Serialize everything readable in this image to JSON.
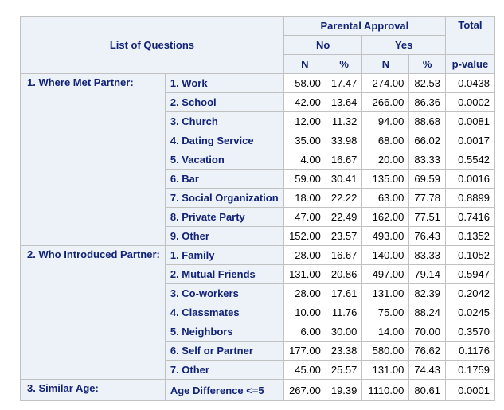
{
  "header": {
    "list_of_questions": "List of Questions",
    "parental_approval": "Parental Approval",
    "total": "Total",
    "no": "No",
    "yes": "Yes",
    "n": "N",
    "pct": "%",
    "p_value": "p-value"
  },
  "groups": [
    {
      "label": "1. Where Met Partner:",
      "rows": [
        {
          "item": "1. Work",
          "no_n": "58.00",
          "no_pct": "17.47",
          "yes_n": "274.00",
          "yes_pct": "82.53",
          "p": "0.0438"
        },
        {
          "item": "2. School",
          "no_n": "42.00",
          "no_pct": "13.64",
          "yes_n": "266.00",
          "yes_pct": "86.36",
          "p": "0.0002"
        },
        {
          "item": "3. Church",
          "no_n": "12.00",
          "no_pct": "11.32",
          "yes_n": "94.00",
          "yes_pct": "88.68",
          "p": "0.0081"
        },
        {
          "item": "4. Dating Service",
          "no_n": "35.00",
          "no_pct": "33.98",
          "yes_n": "68.00",
          "yes_pct": "66.02",
          "p": "0.0017"
        },
        {
          "item": "5. Vacation",
          "no_n": "4.00",
          "no_pct": "16.67",
          "yes_n": "20.00",
          "yes_pct": "83.33",
          "p": "0.5542"
        },
        {
          "item": "6. Bar",
          "no_n": "59.00",
          "no_pct": "30.41",
          "yes_n": "135.00",
          "yes_pct": "69.59",
          "p": "0.0016"
        },
        {
          "item": "7. Social Organization",
          "no_n": "18.00",
          "no_pct": "22.22",
          "yes_n": "63.00",
          "yes_pct": "77.78",
          "p": "0.8899"
        },
        {
          "item": "8. Private Party",
          "no_n": "47.00",
          "no_pct": "22.49",
          "yes_n": "162.00",
          "yes_pct": "77.51",
          "p": "0.7416"
        },
        {
          "item": "9. Other",
          "no_n": "152.00",
          "no_pct": "23.57",
          "yes_n": "493.00",
          "yes_pct": "76.43",
          "p": "0.1352"
        }
      ]
    },
    {
      "label": "2. Who Introduced Partner:",
      "rows": [
        {
          "item": "1. Family",
          "no_n": "28.00",
          "no_pct": "16.67",
          "yes_n": "140.00",
          "yes_pct": "83.33",
          "p": "0.1052"
        },
        {
          "item": "2. Mutual Friends",
          "no_n": "131.00",
          "no_pct": "20.86",
          "yes_n": "497.00",
          "yes_pct": "79.14",
          "p": "0.5947"
        },
        {
          "item": "3. Co-workers",
          "no_n": "28.00",
          "no_pct": "17.61",
          "yes_n": "131.00",
          "yes_pct": "82.39",
          "p": "0.2042"
        },
        {
          "item": "4. Classmates",
          "no_n": "10.00",
          "no_pct": "11.76",
          "yes_n": "75.00",
          "yes_pct": "88.24",
          "p": "0.0245"
        },
        {
          "item": "5. Neighbors",
          "no_n": "6.00",
          "no_pct": "30.00",
          "yes_n": "14.00",
          "yes_pct": "70.00",
          "p": "0.3570"
        },
        {
          "item": "6. Self or Partner",
          "no_n": "177.00",
          "no_pct": "23.38",
          "yes_n": "580.00",
          "yes_pct": "76.62",
          "p": "0.1176"
        },
        {
          "item": "7. Other",
          "no_n": "45.00",
          "no_pct": "25.57",
          "yes_n": "131.00",
          "yes_pct": "74.43",
          "p": "0.1759"
        }
      ]
    },
    {
      "label": "3. Similar Age:",
      "rows": [
        {
          "item": "Age Difference <=5",
          "no_n": "267.00",
          "no_pct": "19.39",
          "yes_n": "1110.00",
          "yes_pct": "80.61",
          "p": "0.0001"
        }
      ]
    }
  ]
}
